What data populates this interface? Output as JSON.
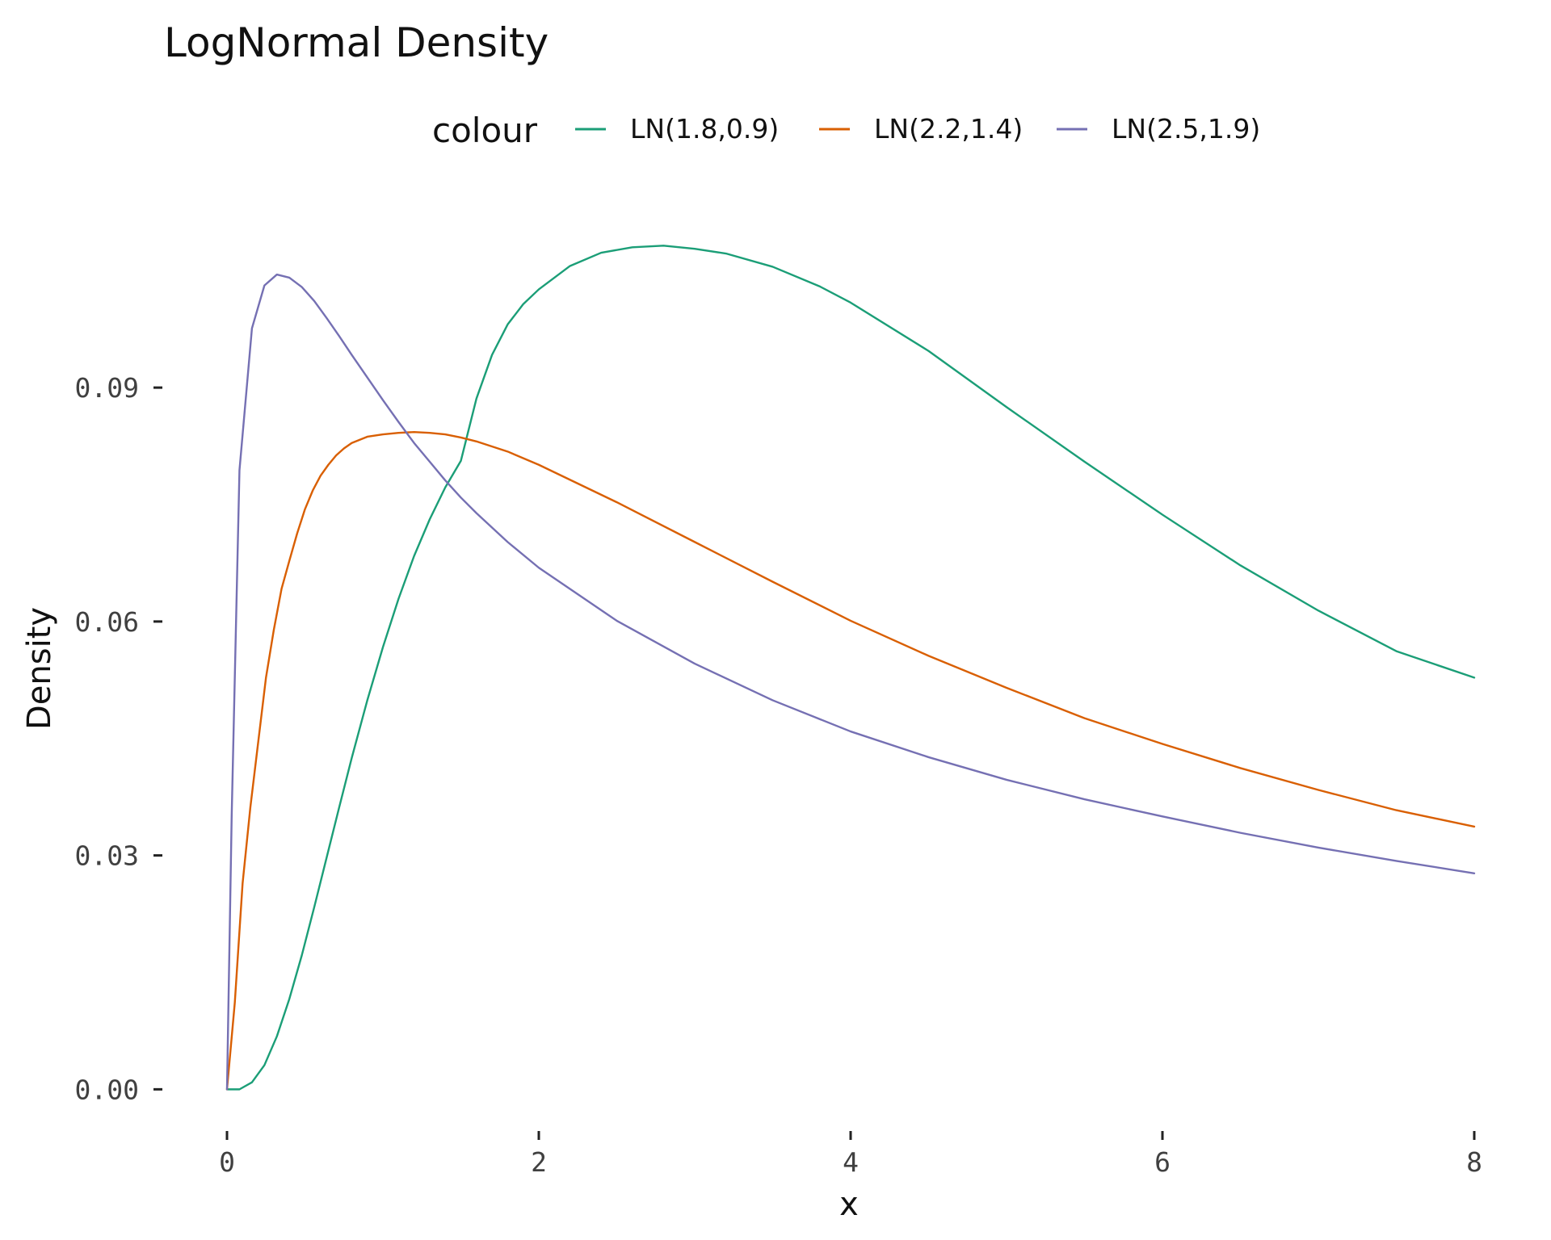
{
  "chart_data": {
    "type": "line",
    "title": "LogNormal Density",
    "xlabel": "x",
    "ylabel": "Density",
    "xlim": [
      0,
      8
    ],
    "ylim": [
      -0.004,
      0.113
    ],
    "x_ticks": [
      0,
      2,
      4,
      6,
      8
    ],
    "x_tick_labels": [
      "0",
      "2",
      "4",
      "6",
      "8"
    ],
    "y_ticks": [
      0,
      0.03,
      0.06,
      0.09
    ],
    "y_tick_labels": [
      "0.00",
      "0.03",
      "0.06",
      "0.09"
    ],
    "grid": false,
    "legend": {
      "title": "colour",
      "position": "top"
    },
    "series": [
      {
        "name": "LN(1.8,0.9)",
        "color": "#1b9e77",
        "x": [
          0,
          0.08,
          0.16,
          0.24,
          0.32,
          0.4,
          0.48,
          0.56,
          0.64,
          0.72,
          0.8,
          0.9,
          1.0,
          1.1,
          1.2,
          1.3,
          1.4,
          1.5,
          1.6,
          1.7,
          1.8,
          1.9,
          2.0,
          2.2,
          2.4,
          2.6,
          2.8,
          3.0,
          3.2,
          3.5,
          3.8,
          4.0,
          4.5,
          5.0,
          5.5,
          6.0,
          6.5,
          7.0,
          7.5,
          8.0
        ],
        "values": [
          0,
          0.0,
          0.0009,
          0.0031,
          0.0068,
          0.0116,
          0.0172,
          0.0234,
          0.0298,
          0.0362,
          0.0425,
          0.0499,
          0.0567,
          0.0629,
          0.0684,
          0.0731,
          0.0772,
          0.0806,
          0.0886,
          0.0942,
          0.0981,
          0.1007,
          0.1026,
          0.1056,
          0.1073,
          0.108,
          0.1082,
          0.1078,
          0.1072,
          0.1055,
          0.103,
          0.1009,
          0.0947,
          0.0875,
          0.0805,
          0.0737,
          0.0672,
          0.0614,
          0.0562,
          0.0528
        ]
      },
      {
        "name": "LN(2.2,1.4)",
        "color": "#d95f02",
        "x": [
          0,
          0.05,
          0.1,
          0.15,
          0.2,
          0.25,
          0.3,
          0.35,
          0.4,
          0.45,
          0.5,
          0.55,
          0.6,
          0.65,
          0.7,
          0.75,
          0.8,
          0.9,
          1.0,
          1.1,
          1.2,
          1.3,
          1.4,
          1.5,
          1.6,
          1.8,
          2.0,
          2.5,
          3.0,
          3.5,
          4.0,
          4.5,
          5.0,
          5.5,
          6.0,
          6.5,
          7.0,
          7.5,
          8.0
        ],
        "values": [
          0,
          0.0111,
          0.0264,
          0.0362,
          0.0445,
          0.0528,
          0.0589,
          0.0642,
          0.0678,
          0.0713,
          0.0744,
          0.0768,
          0.0787,
          0.0801,
          0.0813,
          0.0822,
          0.0829,
          0.0837,
          0.084,
          0.0842,
          0.0843,
          0.0842,
          0.084,
          0.0836,
          0.0831,
          0.0818,
          0.0801,
          0.0753,
          0.0702,
          0.0651,
          0.0601,
          0.0556,
          0.0515,
          0.0476,
          0.0443,
          0.0412,
          0.0384,
          0.0358,
          0.0337
        ]
      },
      {
        "name": "LN(2.5,1.9)",
        "color": "#7570b3",
        "x": [
          0,
          0.03,
          0.08,
          0.16,
          0.24,
          0.32,
          0.4,
          0.48,
          0.56,
          0.64,
          0.72,
          0.8,
          0.9,
          1.0,
          1.1,
          1.2,
          1.3,
          1.4,
          1.5,
          1.6,
          1.8,
          2.0,
          2.5,
          3.0,
          3.5,
          4.0,
          4.5,
          5.0,
          5.5,
          6.0,
          6.5,
          7.0,
          7.5,
          8.0
        ],
        "values": [
          0,
          0.035,
          0.0794,
          0.0976,
          0.1031,
          0.1045,
          0.1041,
          0.1029,
          0.1011,
          0.0989,
          0.0966,
          0.0942,
          0.0913,
          0.0884,
          0.0856,
          0.0829,
          0.0805,
          0.0781,
          0.0759,
          0.0739,
          0.0702,
          0.0669,
          0.0601,
          0.0546,
          0.0499,
          0.0459,
          0.0426,
          0.0397,
          0.0372,
          0.035,
          0.0329,
          0.031,
          0.0293,
          0.0277
        ]
      }
    ]
  }
}
